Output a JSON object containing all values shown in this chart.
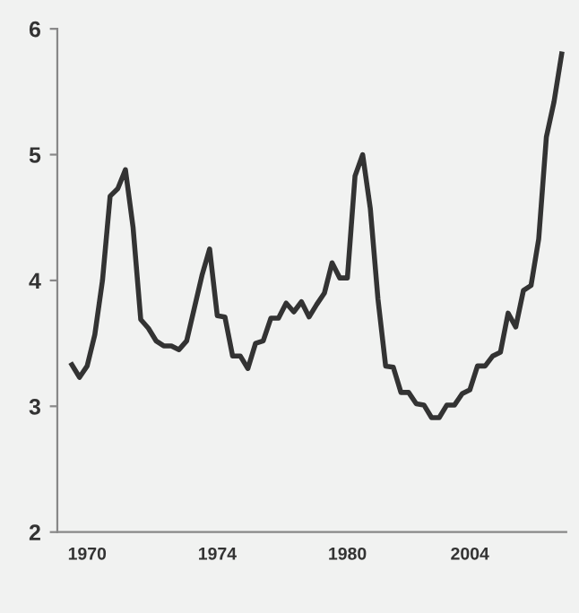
{
  "chart_data": {
    "type": "line",
    "categories": [
      null,
      null,
      "1970",
      null,
      null,
      null,
      null,
      null,
      null,
      null,
      null,
      null,
      null,
      null,
      null,
      null,
      null,
      null,
      null,
      "1974",
      null,
      null,
      null,
      null,
      null,
      null,
      null,
      null,
      null,
      null,
      null,
      null,
      null,
      null,
      null,
      null,
      "1980",
      null,
      null,
      null,
      null,
      null,
      null,
      null,
      null,
      null,
      null,
      null,
      null,
      null,
      null,
      null,
      "2004",
      null,
      null,
      null,
      null,
      null,
      null,
      null,
      null,
      null,
      null,
      null,
      null
    ],
    "series": [
      {
        "color": "#333333",
        "values": [
          3.33,
          3.23,
          3.32,
          3.57,
          4.0,
          4.67,
          4.73,
          4.88,
          4.42,
          3.69,
          3.62,
          3.52,
          3.48,
          3.48,
          3.45,
          3.52,
          3.78,
          4.04,
          4.25,
          3.72,
          3.71,
          3.4,
          3.4,
          3.3,
          3.5,
          3.52,
          3.7,
          3.7,
          3.82,
          3.75,
          3.83,
          3.71,
          3.81,
          3.9,
          4.14,
          4.02,
          4.02,
          4.83,
          5.0,
          4.57,
          3.85,
          3.32,
          3.31,
          3.11,
          3.11,
          3.02,
          3.01,
          2.91,
          2.91,
          3.01,
          3.01,
          3.1,
          3.13,
          3.32,
          3.32,
          3.4,
          3.43,
          3.74,
          3.63,
          3.92,
          3.96,
          4.33,
          5.14,
          5.42,
          5.8
        ]
      }
    ],
    "ylim": [
      2,
      6
    ],
    "yticks": [
      2,
      3,
      4,
      5,
      6
    ],
    "marker": "none",
    "line_style": "solid"
  }
}
